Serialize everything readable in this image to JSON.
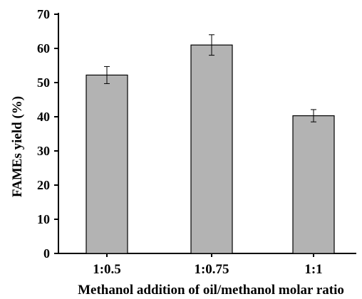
{
  "chart_data": {
    "type": "bar",
    "title": "",
    "xlabel": "Methanol addition of oil/methanol molar ratio",
    "ylabel": "FAMEs yield (%)",
    "categories": [
      "1:0.5",
      "1:0.75",
      "1:1"
    ],
    "values": [
      52.2,
      61.0,
      40.3
    ],
    "errors": [
      2.5,
      3.0,
      1.8
    ],
    "ylim": [
      0,
      70
    ],
    "yticks": [
      "0",
      "10",
      "20",
      "30",
      "40",
      "50",
      "60",
      "70"
    ],
    "grid": false,
    "legend": "none",
    "colors": {
      "bar_fill": "#b3b3b3",
      "bar_stroke": "#000000",
      "axis": "#000000"
    }
  }
}
